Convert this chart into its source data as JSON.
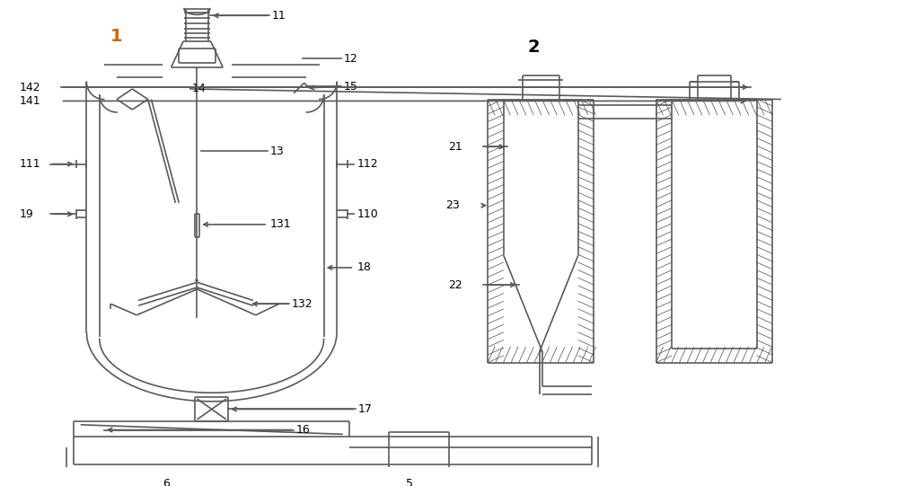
{
  "bg_color": "#ffffff",
  "line_color": "#5a5a5a",
  "label_color": "#000000",
  "label1_color": "#cc6600",
  "title1": "1",
  "title2": "2",
  "figsize": [
    10.0,
    5.41
  ],
  "dpi": 100
}
